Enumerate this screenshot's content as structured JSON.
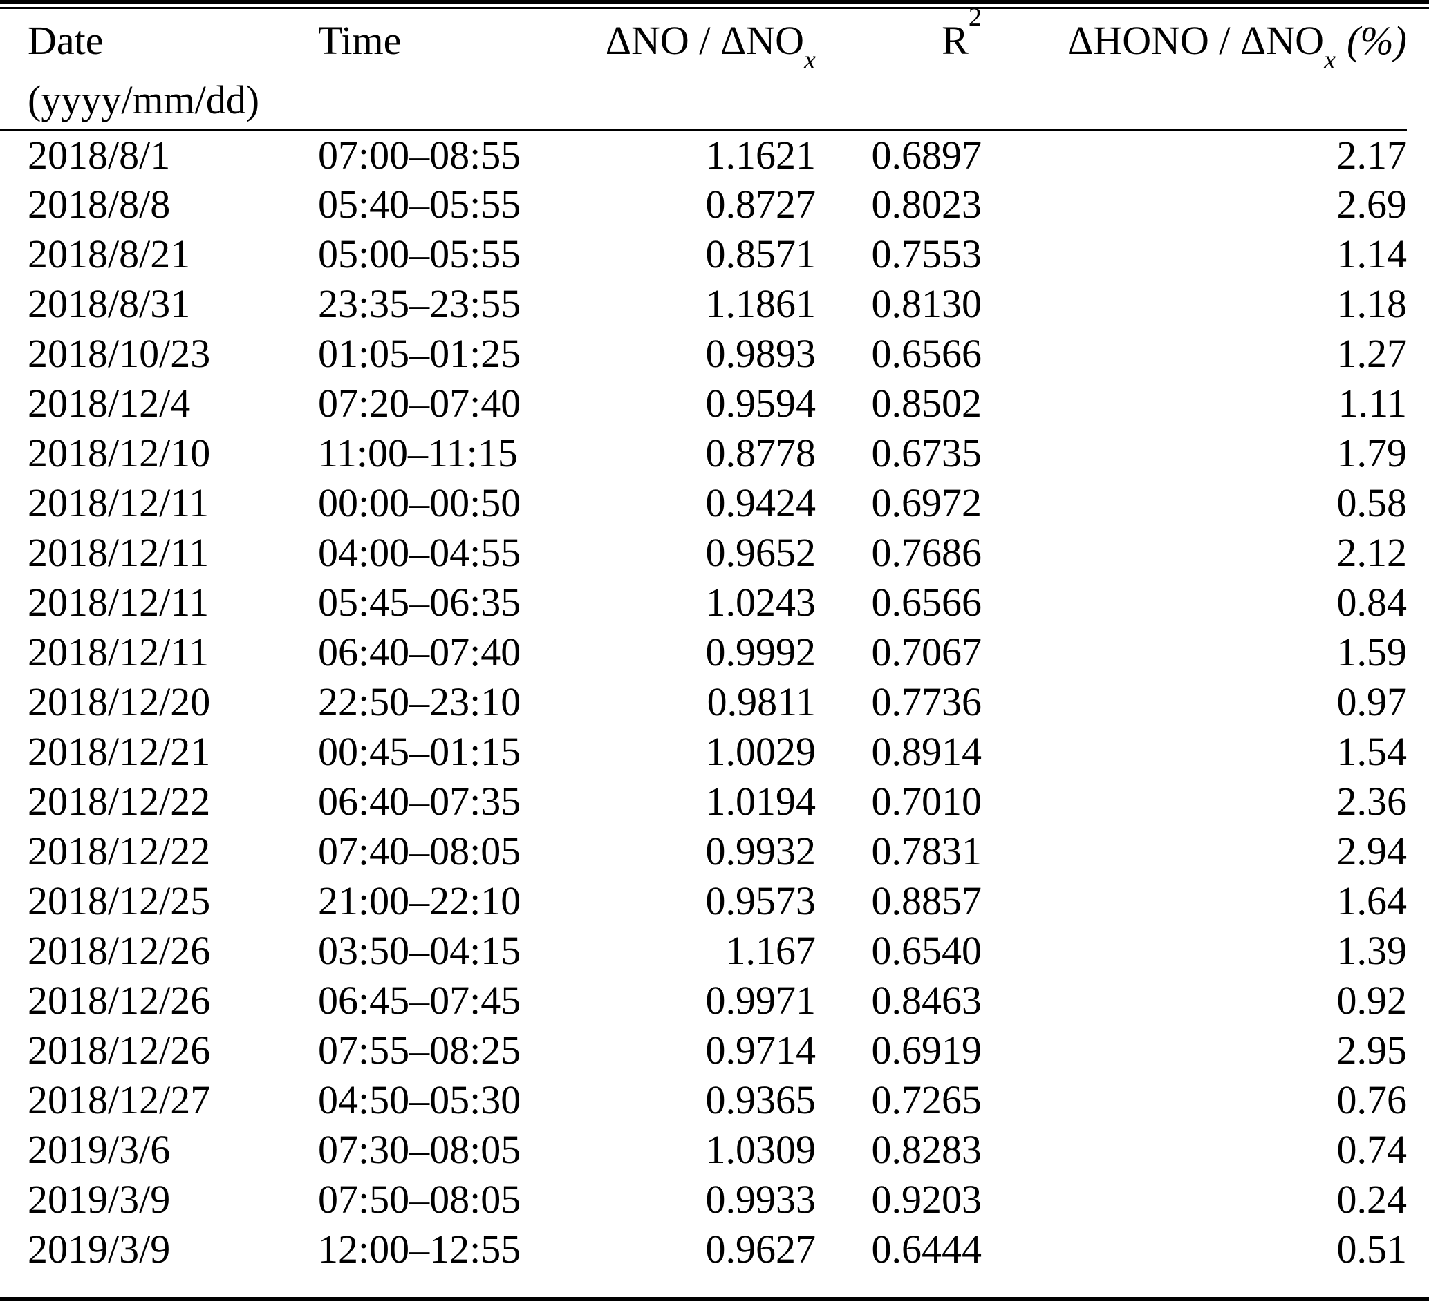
{
  "table": {
    "header": {
      "col1": {
        "line1": "Date",
        "line2": "(yyyy/mm/dd)"
      },
      "col2": {
        "label": "Time"
      },
      "col3": {
        "prefix": "ΔNO / ΔNO",
        "sub": "x"
      },
      "col4": {
        "base": "R",
        "sup": "2"
      },
      "col5": {
        "prefix": "ΔHONO / ΔNO",
        "sub": "x",
        "suffix": "(%)"
      }
    },
    "rows": [
      [
        "2018/8/1",
        "07:00–08:55",
        "1.1621",
        "0.6897",
        "2.17"
      ],
      [
        "2018/8/8",
        "05:40–05:55",
        "0.8727",
        "0.8023",
        "2.69"
      ],
      [
        "2018/8/21",
        "05:00–05:55",
        "0.8571",
        "0.7553",
        "1.14"
      ],
      [
        "2018/8/31",
        "23:35–23:55",
        "1.1861",
        "0.8130",
        "1.18"
      ],
      [
        "2018/10/23",
        "01:05–01:25",
        "0.9893",
        "0.6566",
        "1.27"
      ],
      [
        "2018/12/4",
        "07:20–07:40",
        "0.9594",
        "0.8502",
        "1.11"
      ],
      [
        "2018/12/10",
        "11:00–11:15",
        "0.8778",
        "0.6735",
        "1.79"
      ],
      [
        "2018/12/11",
        "00:00–00:50",
        "0.9424",
        "0.6972",
        "0.58"
      ],
      [
        "2018/12/11",
        "04:00–04:55",
        "0.9652",
        "0.7686",
        "2.12"
      ],
      [
        "2018/12/11",
        "05:45–06:35",
        "1.0243",
        "0.6566",
        "0.84"
      ],
      [
        "2018/12/11",
        "06:40–07:40",
        "0.9992",
        "0.7067",
        "1.59"
      ],
      [
        "2018/12/20",
        "22:50–23:10",
        "0.9811",
        "0.7736",
        "0.97"
      ],
      [
        "2018/12/21",
        "00:45–01:15",
        "1.0029",
        "0.8914",
        "1.54"
      ],
      [
        "2018/12/22",
        "06:40–07:35",
        "1.0194",
        "0.7010",
        "2.36"
      ],
      [
        "2018/12/22",
        "07:40–08:05",
        "0.9932",
        "0.7831",
        "2.94"
      ],
      [
        "2018/12/25",
        "21:00–22:10",
        "0.9573",
        "0.8857",
        "1.64"
      ],
      [
        "2018/12/26",
        "03:50–04:15",
        "1.167",
        "0.6540",
        "1.39"
      ],
      [
        "2018/12/26",
        "06:45–07:45",
        "0.9971",
        "0.8463",
        "0.92"
      ],
      [
        "2018/12/26",
        "07:55–08:25",
        "0.9714",
        "0.6919",
        "2.95"
      ],
      [
        "2018/12/27",
        "04:50–05:30",
        "0.9365",
        "0.7265",
        "0.76"
      ],
      [
        "2019/3/6",
        "07:30–08:05",
        "1.0309",
        "0.8283",
        "0.74"
      ],
      [
        "2019/3/9",
        "07:50–08:05",
        "0.9933",
        "0.9203",
        "0.24"
      ],
      [
        "2019/3/9",
        "12:00–12:55",
        "0.9627",
        "0.6444",
        "0.51"
      ]
    ]
  }
}
